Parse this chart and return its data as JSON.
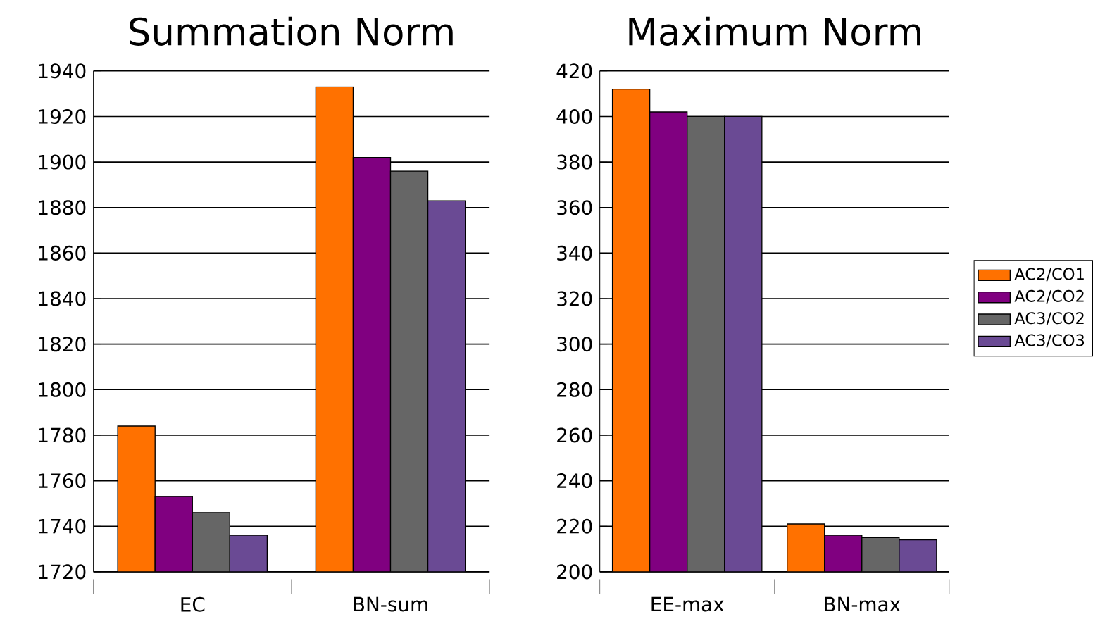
{
  "chart_data": [
    {
      "type": "bar",
      "title": "Summation Norm",
      "categories": [
        "EC",
        "BN-sum"
      ],
      "ylim": [
        1720,
        1940
      ],
      "yticks": [
        1720,
        1740,
        1760,
        1780,
        1800,
        1820,
        1840,
        1860,
        1880,
        1900,
        1920,
        1940
      ],
      "grid": "y",
      "legend": false,
      "series": [
        {
          "color": "#ff7100",
          "values": [
            1784,
            1933
          ]
        },
        {
          "color": "#800080",
          "values": [
            1753,
            1902
          ]
        },
        {
          "color": "#666666",
          "values": [
            1746,
            1896
          ]
        },
        {
          "color": "#6a4a94",
          "values": [
            1736,
            1883
          ]
        }
      ]
    },
    {
      "type": "bar",
      "title": "Maximum Norm",
      "categories": [
        "EE-max",
        "BN-max"
      ],
      "ylim": [
        200,
        420
      ],
      "yticks": [
        200,
        220,
        240,
        260,
        280,
        300,
        320,
        340,
        360,
        380,
        400,
        420
      ],
      "grid": "y",
      "legend": "right",
      "series": [
        {
          "name": "AC2/CO1",
          "color": "#ff7100",
          "values": [
            412,
            221
          ]
        },
        {
          "name": "AC2/CO2",
          "color": "#800080",
          "values": [
            402,
            216
          ]
        },
        {
          "name": "AC3/CO2",
          "color": "#666666",
          "values": [
            400,
            215
          ]
        },
        {
          "name": "AC3/CO3",
          "color": "#6a4a94",
          "values": [
            400,
            214
          ]
        }
      ]
    }
  ]
}
